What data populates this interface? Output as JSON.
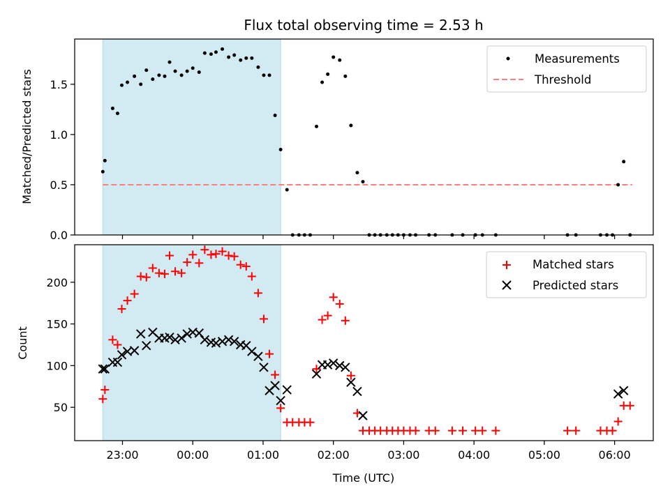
{
  "chart_data": [
    {
      "type": "scatter",
      "title": "Flux total observing time = 2.53 h",
      "xlabel": "",
      "ylabel": "Matched/Predicted stars",
      "xlim": [
        -1.68,
        6.55
      ],
      "ylim": [
        0.0,
        1.95
      ],
      "yticks": [
        0.0,
        0.5,
        1.0,
        1.5
      ],
      "ytick_labels": [
        "0.0",
        "0.5",
        "1.0",
        "1.5"
      ],
      "shaded_span": {
        "x0": -1.28,
        "x1": 1.25,
        "color": "#add8e6"
      },
      "legend": [
        {
          "label": "Measurements",
          "marker": "dot",
          "color": "#000000"
        },
        {
          "label": "Threshold",
          "marker": "dashed-line",
          "color": "#ff7f7f"
        }
      ],
      "threshold": {
        "name": "Threshold",
        "value": 0.5,
        "x_start": -1.28,
        "x_end": 6.25,
        "color": "#ff7f7f"
      },
      "series": [
        {
          "name": "Measurements",
          "color": "#000000",
          "x": [
            -1.28,
            -1.25,
            -1.14,
            -1.07,
            -1.01,
            -0.93,
            -0.83,
            -0.74,
            -0.66,
            -0.57,
            -0.48,
            -0.4,
            -0.33,
            -0.25,
            -0.16,
            -0.08,
            0.0,
            0.09,
            0.17,
            0.26,
            0.33,
            0.42,
            0.51,
            0.59,
            0.68,
            0.76,
            0.84,
            0.93,
            1.01,
            1.09,
            1.17,
            1.25,
            1.34,
            1.42,
            1.51,
            1.59,
            1.67,
            1.76,
            1.84,
            1.92,
            2.0,
            2.09,
            2.17,
            2.25,
            2.34,
            2.42,
            2.51,
            2.59,
            2.67,
            2.76,
            2.84,
            2.92,
            3.0,
            3.09,
            3.17,
            3.36,
            3.45,
            3.69,
            3.84,
            4.02,
            4.12,
            4.31,
            5.33,
            5.45,
            5.8,
            5.89,
            5.97,
            6.05,
            6.13,
            6.22
          ],
          "y": [
            0.63,
            0.74,
            1.26,
            1.21,
            1.49,
            1.52,
            1.58,
            1.5,
            1.64,
            1.55,
            1.59,
            1.58,
            1.72,
            1.63,
            1.59,
            1.63,
            1.66,
            1.62,
            1.81,
            1.8,
            1.82,
            1.85,
            1.77,
            1.79,
            1.74,
            1.76,
            1.76,
            1.67,
            1.59,
            1.59,
            1.19,
            0.85,
            0.45,
            0.0,
            0.0,
            0.0,
            0.0,
            1.08,
            1.52,
            1.6,
            1.77,
            1.74,
            1.58,
            1.09,
            0.62,
            0.53,
            0.0,
            0.0,
            0.0,
            0.0,
            0.0,
            0.0,
            0.0,
            0.0,
            0.0,
            0.0,
            0.0,
            0.0,
            0.0,
            0.0,
            0.0,
            0.0,
            0.0,
            0.0,
            0.0,
            0.0,
            0.0,
            0.5,
            0.73,
            0.0
          ]
        }
      ]
    },
    {
      "type": "scatter",
      "title": "",
      "xlabel": "Time (UTC)",
      "ylabel": "Count",
      "xlim": [
        -1.68,
        6.55
      ],
      "ylim": [
        10,
        245
      ],
      "xticks": [
        -1.0,
        0.0,
        1.0,
        2.0,
        3.0,
        4.0,
        5.0,
        6.0
      ],
      "xtick_labels": [
        "23:00",
        "00:00",
        "01:00",
        "02:00",
        "03:00",
        "04:00",
        "05:00",
        "06:00"
      ],
      "yticks": [
        50,
        100,
        150,
        200
      ],
      "ytick_labels": [
        "50",
        "100",
        "150",
        "200"
      ],
      "shaded_span": {
        "x0": -1.28,
        "x1": 1.25,
        "color": "#add8e6"
      },
      "legend": [
        {
          "label": "Matched stars",
          "marker": "plus",
          "color": "#ff0000"
        },
        {
          "label": "Predicted stars",
          "marker": "x",
          "color": "#000000"
        }
      ],
      "series": [
        {
          "name": "Matched stars",
          "marker": "plus",
          "color": "#ff0000",
          "x": [
            -1.28,
            -1.25,
            -1.14,
            -1.07,
            -1.01,
            -0.93,
            -0.83,
            -0.74,
            -0.66,
            -0.57,
            -0.48,
            -0.4,
            -0.33,
            -0.25,
            -0.16,
            -0.08,
            0.0,
            0.09,
            0.17,
            0.26,
            0.33,
            0.42,
            0.51,
            0.59,
            0.68,
            0.76,
            0.84,
            0.93,
            1.01,
            1.09,
            1.17,
            1.25,
            1.34,
            1.42,
            1.51,
            1.59,
            1.67,
            1.76,
            1.84,
            1.92,
            2.0,
            2.09,
            2.17,
            2.25,
            2.34,
            2.42,
            2.51,
            2.59,
            2.67,
            2.76,
            2.84,
            2.92,
            3.0,
            3.09,
            3.17,
            3.36,
            3.45,
            3.69,
            3.84,
            4.02,
            4.12,
            4.31,
            5.33,
            5.45,
            5.8,
            5.89,
            5.97,
            6.05,
            6.13,
            6.22
          ],
          "y": [
            60,
            71,
            131,
            125,
            168,
            178,
            186,
            207,
            206,
            217,
            211,
            210,
            232,
            213,
            211,
            224,
            233,
            223,
            239,
            233,
            234,
            237,
            232,
            231,
            221,
            219,
            207,
            187,
            156,
            114,
            89,
            49,
            32,
            32,
            32,
            32,
            32,
            96,
            155,
            160,
            182,
            174,
            154,
            88,
            43,
            22,
            22,
            22,
            22,
            22,
            22,
            22,
            22,
            22,
            22,
            22,
            22,
            22,
            22,
            22,
            22,
            22,
            22,
            22,
            22,
            22,
            22,
            33,
            52,
            52
          ]
        },
        {
          "name": "Predicted stars",
          "marker": "x",
          "color": "#000000",
          "x": [
            -1.28,
            -1.25,
            -1.14,
            -1.07,
            -1.01,
            -0.93,
            -0.83,
            -0.74,
            -0.66,
            -0.57,
            -0.48,
            -0.4,
            -0.33,
            -0.25,
            -0.16,
            -0.08,
            0.0,
            0.09,
            0.17,
            0.26,
            0.33,
            0.42,
            0.51,
            0.59,
            0.68,
            0.76,
            0.84,
            0.93,
            1.01,
            1.09,
            1.17,
            1.25,
            1.34,
            1.76,
            1.84,
            1.92,
            2.0,
            2.09,
            2.17,
            2.25,
            2.34,
            2.42,
            6.05,
            6.13
          ],
          "y": [
            96,
            96,
            104,
            104,
            113,
            117,
            118,
            138,
            124,
            140,
            133,
            133,
            134,
            131,
            133,
            138,
            140,
            139,
            131,
            128,
            127,
            129,
            131,
            129,
            125,
            124,
            117,
            111,
            98,
            70,
            76,
            58,
            71,
            90,
            101,
            101,
            103,
            100,
            98,
            80,
            69,
            40,
            66,
            70
          ]
        }
      ]
    }
  ]
}
